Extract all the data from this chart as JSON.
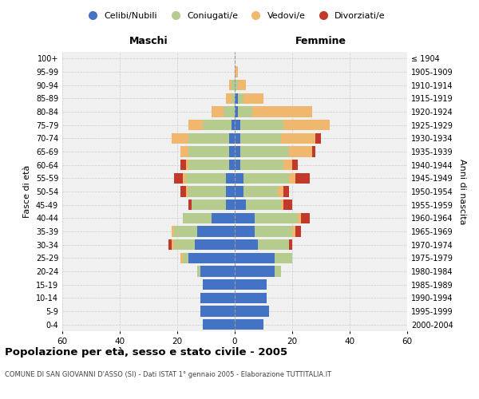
{
  "age_groups": [
    "0-4",
    "5-9",
    "10-14",
    "15-19",
    "20-24",
    "25-29",
    "30-34",
    "35-39",
    "40-44",
    "45-49",
    "50-54",
    "55-59",
    "60-64",
    "65-69",
    "70-74",
    "75-79",
    "80-84",
    "85-89",
    "90-94",
    "95-99",
    "100+"
  ],
  "birth_years": [
    "2000-2004",
    "1995-1999",
    "1990-1994",
    "1985-1989",
    "1980-1984",
    "1975-1979",
    "1970-1974",
    "1965-1969",
    "1960-1964",
    "1955-1959",
    "1950-1954",
    "1945-1949",
    "1940-1944",
    "1935-1939",
    "1930-1934",
    "1925-1929",
    "1920-1924",
    "1915-1919",
    "1910-1914",
    "1905-1909",
    "≤ 1904"
  ],
  "maschi": {
    "celibi": [
      11,
      12,
      12,
      11,
      12,
      16,
      14,
      13,
      8,
      3,
      3,
      3,
      2,
      2,
      2,
      1,
      0,
      0,
      0,
      0,
      0
    ],
    "coniugati": [
      0,
      0,
      0,
      0,
      1,
      2,
      7,
      8,
      10,
      12,
      13,
      14,
      14,
      14,
      14,
      10,
      4,
      1,
      1,
      0,
      0
    ],
    "vedovi": [
      0,
      0,
      0,
      0,
      0,
      1,
      1,
      1,
      0,
      0,
      1,
      1,
      1,
      3,
      6,
      5,
      4,
      2,
      1,
      0,
      0
    ],
    "divorziati": [
      0,
      0,
      0,
      0,
      0,
      0,
      1,
      0,
      0,
      1,
      2,
      3,
      2,
      0,
      0,
      0,
      0,
      0,
      0,
      0,
      0
    ]
  },
  "femmine": {
    "nubili": [
      10,
      12,
      11,
      11,
      14,
      14,
      8,
      7,
      7,
      4,
      3,
      3,
      2,
      2,
      2,
      2,
      1,
      1,
      0,
      0,
      0
    ],
    "coniugate": [
      0,
      0,
      0,
      0,
      2,
      6,
      11,
      13,
      15,
      12,
      12,
      16,
      15,
      17,
      14,
      15,
      5,
      2,
      1,
      0,
      0
    ],
    "vedove": [
      0,
      0,
      0,
      0,
      0,
      0,
      0,
      1,
      1,
      1,
      2,
      2,
      3,
      8,
      12,
      16,
      21,
      7,
      3,
      1,
      0
    ],
    "divorziate": [
      0,
      0,
      0,
      0,
      0,
      0,
      1,
      2,
      3,
      3,
      2,
      5,
      2,
      1,
      2,
      0,
      0,
      0,
      0,
      0,
      0
    ]
  },
  "colors": {
    "celibi_nubili": "#4472C4",
    "coniugati": "#B5CC8E",
    "vedovi": "#F0B86E",
    "divorziati": "#C0392B"
  },
  "xlim": 60,
  "title": "Popolazione per età, sesso e stato civile - 2005",
  "subtitle": "COMUNE DI SAN GIOVANNI D'ASSO (SI) - Dati ISTAT 1° gennaio 2005 - Elaborazione TUTTITALIA.IT",
  "ylabel_left": "Fasce di età",
  "ylabel_right": "Anni di nascita",
  "xlabel_maschi": "Maschi",
  "xlabel_femmine": "Femmine",
  "background_color": "#ffffff",
  "plot_bg_color": "#f0f0f0",
  "grid_color": "#cccccc"
}
